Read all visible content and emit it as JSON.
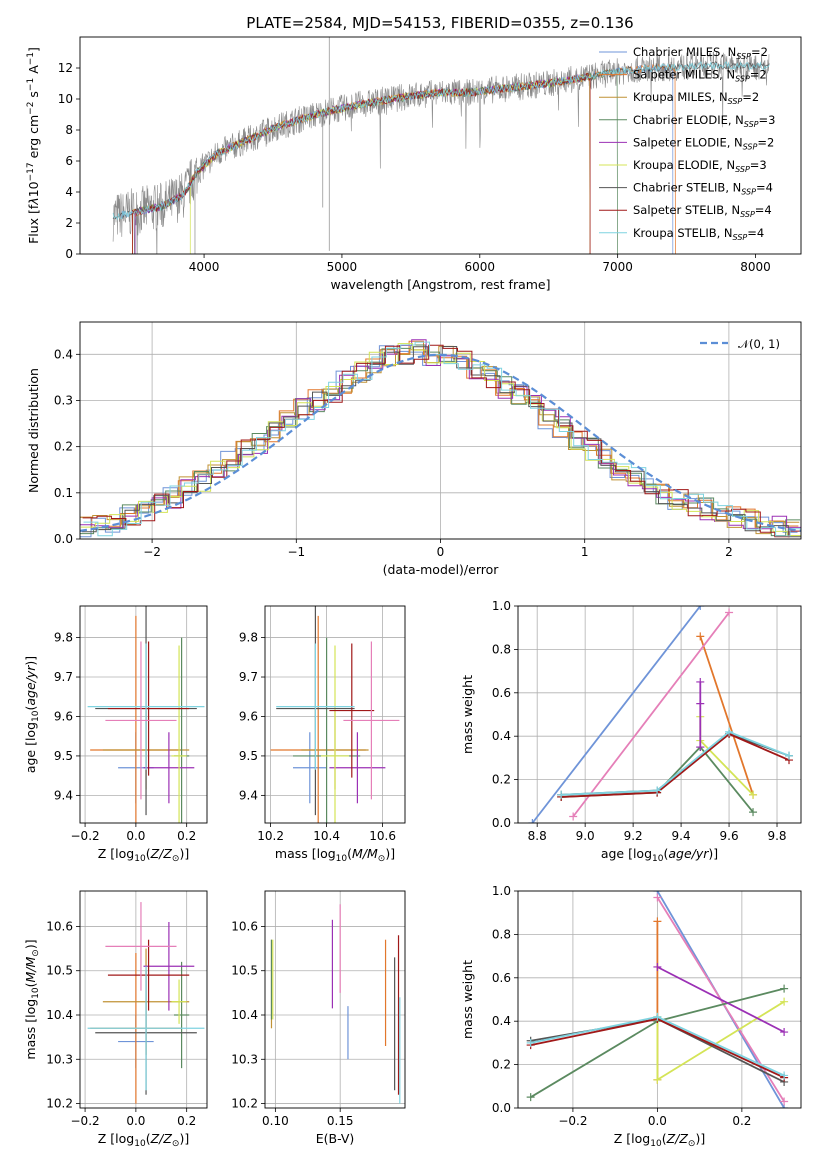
{
  "figure": {
    "title": "PLATE=2584, MJD=54153, FIBERID=0355, z=0.136"
  },
  "colors": {
    "chabrier_miles": "#6f94d8",
    "salpeter_miles": "#e2772c",
    "kroupa_miles": "#c09236",
    "chabrier_elodie": "#5b8a60",
    "salpeter_elodie": "#9b30b5",
    "kroupa_elodie": "#d4e457",
    "chabrier_stelib": "#555555",
    "salpeter_stelib": "#a01818",
    "kroupa_stelib": "#7fd3e0",
    "gauss": "#5b8ed6",
    "data": "#8a8a8a"
  },
  "chart_data": [
    {
      "type": "line",
      "title": "PLATE=2584, MJD=54153, FIBERID=0355, z=0.136",
      "xlabel": "wavelength [Angstrom, rest frame]",
      "ylabel": "Flux [f_λ 10^-17 erg cm^-2 s^-1 A^-1]",
      "xlim": [
        3100,
        8330
      ],
      "ylim": [
        0,
        14
      ],
      "xticks": [
        "4000",
        "5000",
        "6000",
        "7000",
        "8000"
      ],
      "yticks": [
        "0",
        "2",
        "4",
        "6",
        "8",
        "10",
        "12"
      ],
      "legend_position": "upper-right",
      "legend": [
        "Chabrier MILES, N_SSP=2",
        "Salpeter MILES, N_SSP=2",
        "Kroupa MILES, N_SSP=2",
        "Chabrier ELODIE, N_SSP=3",
        "Salpeter ELODIE, N_SSP=2",
        "Kroupa ELODIE, N_SSP=3",
        "Chabrier STELIB, N_SSP=4",
        "Salpeter STELIB, N_SSP=4",
        "Kroupa STELIB, N_SSP=4"
      ],
      "continuum": {
        "x": [
          3340,
          3500,
          3700,
          3850,
          3950,
          4100,
          4300,
          4500,
          4700,
          4900,
          5100,
          5300,
          5500,
          5700,
          5900,
          6100,
          6300,
          6500,
          6700,
          6900,
          7100,
          7300,
          7500,
          7700,
          7900,
          8100
        ],
        "y": [
          2.4,
          2.7,
          3.1,
          3.8,
          5.3,
          6.5,
          7.3,
          8.1,
          8.7,
          9.2,
          9.6,
          9.9,
          10.2,
          10.4,
          10.4,
          10.6,
          10.8,
          11.0,
          11.3,
          11.6,
          11.9,
          12.0,
          12.1,
          12.2,
          12.1,
          12.1
        ]
      }
    },
    {
      "type": "step",
      "xlabel": "(data-model)/error",
      "ylabel": "Normed distribution",
      "xlim": [
        -2.5,
        2.5
      ],
      "ylim": [
        0,
        0.47
      ],
      "xticks": [
        "-2",
        "-1",
        "0",
        "1",
        "2"
      ],
      "yticks": [
        "0.0",
        "0.1",
        "0.2",
        "0.3",
        "0.4"
      ],
      "legend_label": "𝒩(0, 1)",
      "legend_position": "upper-right",
      "bins_center": [
        -2.45,
        -2.35,
        -2.25,
        -2.15,
        -2.05,
        -1.95,
        -1.85,
        -1.75,
        -1.65,
        -1.55,
        -1.45,
        -1.35,
        -1.25,
        -1.15,
        -1.05,
        -0.95,
        -0.85,
        -0.75,
        -0.65,
        -0.55,
        -0.45,
        -0.35,
        -0.25,
        -0.15,
        -0.05,
        0.05,
        0.15,
        0.25,
        0.35,
        0.45,
        0.55,
        0.65,
        0.75,
        0.85,
        0.95,
        1.05,
        1.15,
        1.25,
        1.35,
        1.45,
        1.55,
        1.65,
        1.75,
        1.85,
        1.95,
        2.05,
        2.15,
        2.25,
        2.35,
        2.45
      ],
      "base_values": [
        0.025,
        0.03,
        0.04,
        0.05,
        0.06,
        0.075,
        0.09,
        0.11,
        0.125,
        0.145,
        0.165,
        0.19,
        0.21,
        0.235,
        0.255,
        0.28,
        0.3,
        0.32,
        0.34,
        0.36,
        0.38,
        0.395,
        0.4,
        0.41,
        0.4,
        0.395,
        0.385,
        0.37,
        0.35,
        0.33,
        0.31,
        0.29,
        0.26,
        0.24,
        0.215,
        0.195,
        0.17,
        0.15,
        0.13,
        0.115,
        0.1,
        0.085,
        0.075,
        0.065,
        0.055,
        0.05,
        0.04,
        0.035,
        0.025,
        0.02
      ],
      "gaussian": {
        "mean": 0,
        "sigma": 1
      }
    },
    {
      "type": "errorbar",
      "xlabel": "Z [log10(Z/Z⊙)]",
      "ylabel": "age  [log10(age/yr)]",
      "xlim": [
        -0.22,
        0.28
      ],
      "ylim": [
        9.33,
        9.88
      ],
      "xticks": [
        "-0.2",
        "0.0",
        "0.2"
      ],
      "yticks": [
        "9.4",
        "9.5",
        "9.6",
        "9.7",
        "9.8"
      ],
      "points": [
        {
          "x": 0.0,
          "y": 9.47,
          "xerr": 0.07,
          "yerr": 0.09,
          "color": "chabrier_miles"
        },
        {
          "x": 0.0,
          "y": 9.515,
          "xerr": 0.18,
          "yerr": 0.34,
          "color": "salpeter_miles"
        },
        {
          "x": 0.04,
          "y": 9.515,
          "xerr": 0.17,
          "yerr": 0.1,
          "color": "kroupa_miles"
        },
        {
          "x": 0.18,
          "y": 9.5,
          "xerr": 0.03,
          "yerr": 0.3,
          "color": "chabrier_elodie"
        },
        {
          "x": 0.13,
          "y": 9.47,
          "xerr": 0.1,
          "yerr": 0.09,
          "color": "salpeter_elodie"
        },
        {
          "x": 0.17,
          "y": 9.5,
          "xerr": 0.03,
          "yerr": 0.28,
          "color": "kroupa_elodie"
        },
        {
          "x": 0.04,
          "y": 9.62,
          "xerr": 0.2,
          "yerr": 0.27,
          "color": "chabrier_stelib"
        },
        {
          "x": 0.05,
          "y": 9.62,
          "xerr": 0.16,
          "yerr": 0.17,
          "color": "salpeter_stelib"
        },
        {
          "x": 0.04,
          "y": 9.625,
          "xerr": 0.23,
          "yerr": 0.16,
          "color": "kroupa_stelib"
        },
        {
          "x": 0.02,
          "y": 9.59,
          "xerr": 0.14,
          "yerr": 0.2,
          "color": "pink"
        }
      ]
    },
    {
      "type": "errorbar",
      "xlabel": "mass [log10(M/M⊙)]",
      "xlim": [
        10.18,
        10.68
      ],
      "ylim": [
        9.33,
        9.88
      ],
      "xticks": [
        "10.2",
        "10.4",
        "10.6"
      ],
      "yticks": [
        "9.4",
        "9.5",
        "9.6",
        "9.7",
        "9.8"
      ],
      "points": [
        {
          "x": 10.34,
          "y": 9.47,
          "xerr": 0.06,
          "yerr": 0.09,
          "color": "chabrier_miles"
        },
        {
          "x": 10.37,
          "y": 9.515,
          "xerr": 0.17,
          "yerr": 0.34,
          "color": "salpeter_miles"
        },
        {
          "x": 10.43,
          "y": 9.515,
          "xerr": 0.12,
          "yerr": 0.1,
          "color": "kroupa_miles"
        },
        {
          "x": 10.4,
          "y": 9.5,
          "xerr": 0.12,
          "yerr": 0.3,
          "color": "chabrier_elodie"
        },
        {
          "x": 10.51,
          "y": 9.47,
          "xerr": 0.1,
          "yerr": 0.09,
          "color": "salpeter_elodie"
        },
        {
          "x": 10.43,
          "y": 9.5,
          "xerr": 0.05,
          "yerr": 0.28,
          "color": "kroupa_elodie"
        },
        {
          "x": 10.36,
          "y": 9.62,
          "xerr": 0.14,
          "yerr": 0.27,
          "color": "chabrier_stelib"
        },
        {
          "x": 10.49,
          "y": 9.615,
          "xerr": 0.08,
          "yerr": 0.17,
          "color": "salpeter_stelib"
        },
        {
          "x": 10.36,
          "y": 9.625,
          "xerr": 0.14,
          "yerr": 0.16,
          "color": "kroupa_stelib"
        },
        {
          "x": 10.56,
          "y": 9.59,
          "xerr": 0.1,
          "yerr": 0.2,
          "color": "pink"
        }
      ]
    },
    {
      "type": "line",
      "xlabel": "age  [log10(age/yr)]",
      "ylabel": "mass weight",
      "xlim": [
        8.72,
        9.9
      ],
      "ylim": [
        0,
        1
      ],
      "xticks": [
        "8.8",
        "9.0",
        "9.2",
        "9.4",
        "9.6",
        "9.8"
      ],
      "yticks": [
        "0.0",
        "0.2",
        "0.4",
        "0.6",
        "0.8",
        "1.0"
      ],
      "series": [
        {
          "color": "chabrier_miles",
          "x": [
            8.78,
            9.48
          ],
          "y": [
            0.0,
            1.0
          ]
        },
        {
          "color": "salpeter_miles",
          "x": [
            9.48,
            9.7
          ],
          "y": [
            0.86,
            0.13
          ]
        },
        {
          "color": "pink",
          "x": [
            8.95,
            9.6
          ],
          "y": [
            0.03,
            0.97
          ]
        },
        {
          "color": "chabrier_elodie",
          "x": [
            8.9,
            9.3,
            9.48,
            9.7
          ],
          "y": [
            0.12,
            0.14,
            0.35,
            0.05
          ]
        },
        {
          "color": "kroupa_elodie",
          "x": [
            9.48,
            9.48,
            9.7
          ],
          "y": [
            0.49,
            0.38,
            0.13
          ]
        },
        {
          "color": "salpeter_elodie",
          "x": [
            9.48,
            9.48,
            9.48
          ],
          "y": [
            0.65,
            0.55,
            0.35
          ]
        },
        {
          "color": "chabrier_stelib",
          "x": [
            8.9,
            9.3,
            9.6,
            9.85
          ],
          "y": [
            0.13,
            0.15,
            0.41,
            0.31
          ]
        },
        {
          "color": "salpeter_stelib",
          "x": [
            8.9,
            9.3,
            9.6,
            9.85
          ],
          "y": [
            0.12,
            0.14,
            0.41,
            0.29
          ]
        },
        {
          "color": "kroupa_stelib",
          "x": [
            8.9,
            9.3,
            9.6,
            9.85
          ],
          "y": [
            0.13,
            0.15,
            0.42,
            0.31
          ]
        }
      ]
    },
    {
      "type": "errorbar",
      "xlabel": "Z [log10(Z/Z⊙)]",
      "ylabel": "mass [log10(M/M⊙)]",
      "xlim": [
        -0.22,
        0.28
      ],
      "ylim": [
        10.19,
        10.68
      ],
      "xticks": [
        "-0.2",
        "0.0",
        "0.2"
      ],
      "yticks": [
        "10.2",
        "10.3",
        "10.4",
        "10.5",
        "10.6"
      ],
      "points": [
        {
          "x": 0.0,
          "y": 10.34,
          "xerr": 0.07,
          "yerr": 0.06,
          "color": "chabrier_miles"
        },
        {
          "x": 0.0,
          "y": 10.37,
          "xerr": 0.18,
          "yerr": 0.17,
          "color": "salpeter_miles"
        },
        {
          "x": 0.04,
          "y": 10.43,
          "xerr": 0.17,
          "yerr": 0.12,
          "color": "kroupa_miles"
        },
        {
          "x": 0.18,
          "y": 10.4,
          "xerr": 0.03,
          "yerr": 0.12,
          "color": "chabrier_elodie"
        },
        {
          "x": 0.13,
          "y": 10.51,
          "xerr": 0.1,
          "yerr": 0.1,
          "color": "salpeter_elodie"
        },
        {
          "x": 0.17,
          "y": 10.43,
          "xerr": 0.03,
          "yerr": 0.05,
          "color": "kroupa_elodie"
        },
        {
          "x": 0.04,
          "y": 10.36,
          "xerr": 0.2,
          "yerr": 0.14,
          "color": "chabrier_stelib"
        },
        {
          "x": 0.05,
          "y": 10.49,
          "xerr": 0.16,
          "yerr": 0.08,
          "color": "salpeter_stelib"
        },
        {
          "x": 0.04,
          "y": 10.37,
          "xerr": 0.23,
          "yerr": 0.14,
          "color": "kroupa_stelib"
        },
        {
          "x": 0.02,
          "y": 10.555,
          "xerr": 0.14,
          "yerr": 0.1,
          "color": "pink"
        }
      ]
    },
    {
      "type": "errorbar",
      "xlabel": "E(B-V)",
      "xlim": [
        0.092,
        0.2
      ],
      "ylim": [
        10.19,
        10.68
      ],
      "xticks": [
        "0.10",
        "0.15"
      ],
      "yticks": [
        "10.2",
        "10.3",
        "10.4",
        "10.5",
        "10.6"
      ],
      "points": [
        {
          "x": 0.156,
          "y": 10.36,
          "yerr": 0.06,
          "color": "chabrier_miles"
        },
        {
          "x": 0.185,
          "y": 10.45,
          "yerr": 0.12,
          "color": "salpeter_miles"
        },
        {
          "x": 0.097,
          "y": 10.47,
          "yerr": 0.1,
          "color": "kroupa_miles"
        },
        {
          "x": 0.097,
          "y": 10.48,
          "yerr": 0.09,
          "color": "chabrier_elodie"
        },
        {
          "x": 0.144,
          "y": 10.515,
          "yerr": 0.1,
          "color": "salpeter_elodie"
        },
        {
          "x": 0.098,
          "y": 10.48,
          "yerr": 0.09,
          "color": "kroupa_elodie"
        },
        {
          "x": 0.192,
          "y": 10.38,
          "yerr": 0.15,
          "color": "chabrier_stelib"
        },
        {
          "x": 0.195,
          "y": 10.4,
          "yerr": 0.18,
          "color": "salpeter_stelib"
        },
        {
          "x": 0.196,
          "y": 10.32,
          "yerr": 0.12,
          "color": "kroupa_stelib"
        },
        {
          "x": 0.15,
          "y": 10.55,
          "yerr": 0.1,
          "color": "pink"
        }
      ]
    },
    {
      "type": "line",
      "xlabel": "Z [log10(Z/Z⊙)]",
      "ylabel": "mass weight",
      "xlim": [
        -0.33,
        0.34
      ],
      "ylim": [
        0,
        1
      ],
      "xticks": [
        "-0.2",
        "0.0",
        "0.2"
      ],
      "yticks": [
        "0.0",
        "0.2",
        "0.4",
        "0.6",
        "0.8",
        "1.0"
      ],
      "series": [
        {
          "color": "chabrier_miles",
          "x": [
            0.0,
            0.3
          ],
          "y": [
            1.0,
            0.0
          ]
        },
        {
          "color": "salpeter_miles",
          "x": [
            0.0,
            0.0
          ],
          "y": [
            0.86,
            0.13
          ]
        },
        {
          "color": "pink",
          "x": [
            0.0,
            0.3
          ],
          "y": [
            0.97,
            0.03
          ]
        },
        {
          "color": "chabrier_elodie",
          "x": [
            -0.3,
            0.0,
            0.3
          ],
          "y": [
            0.05,
            0.4,
            0.55
          ]
        },
        {
          "color": "kroupa_elodie",
          "x": [
            0.0,
            0.0,
            0.3
          ],
          "y": [
            0.42,
            0.13,
            0.49
          ]
        },
        {
          "color": "salpeter_elodie",
          "x": [
            0.0,
            0.3
          ],
          "y": [
            0.65,
            0.35
          ]
        },
        {
          "color": "chabrier_stelib",
          "x": [
            -0.3,
            0.0,
            0.3
          ],
          "y": [
            0.31,
            0.41,
            0.12
          ]
        },
        {
          "color": "salpeter_stelib",
          "x": [
            -0.3,
            0.0,
            0.3
          ],
          "y": [
            0.29,
            0.41,
            0.14
          ]
        },
        {
          "color": "kroupa_stelib",
          "x": [
            -0.3,
            0.0,
            0.3
          ],
          "y": [
            0.3,
            0.42,
            0.15
          ]
        }
      ]
    }
  ]
}
